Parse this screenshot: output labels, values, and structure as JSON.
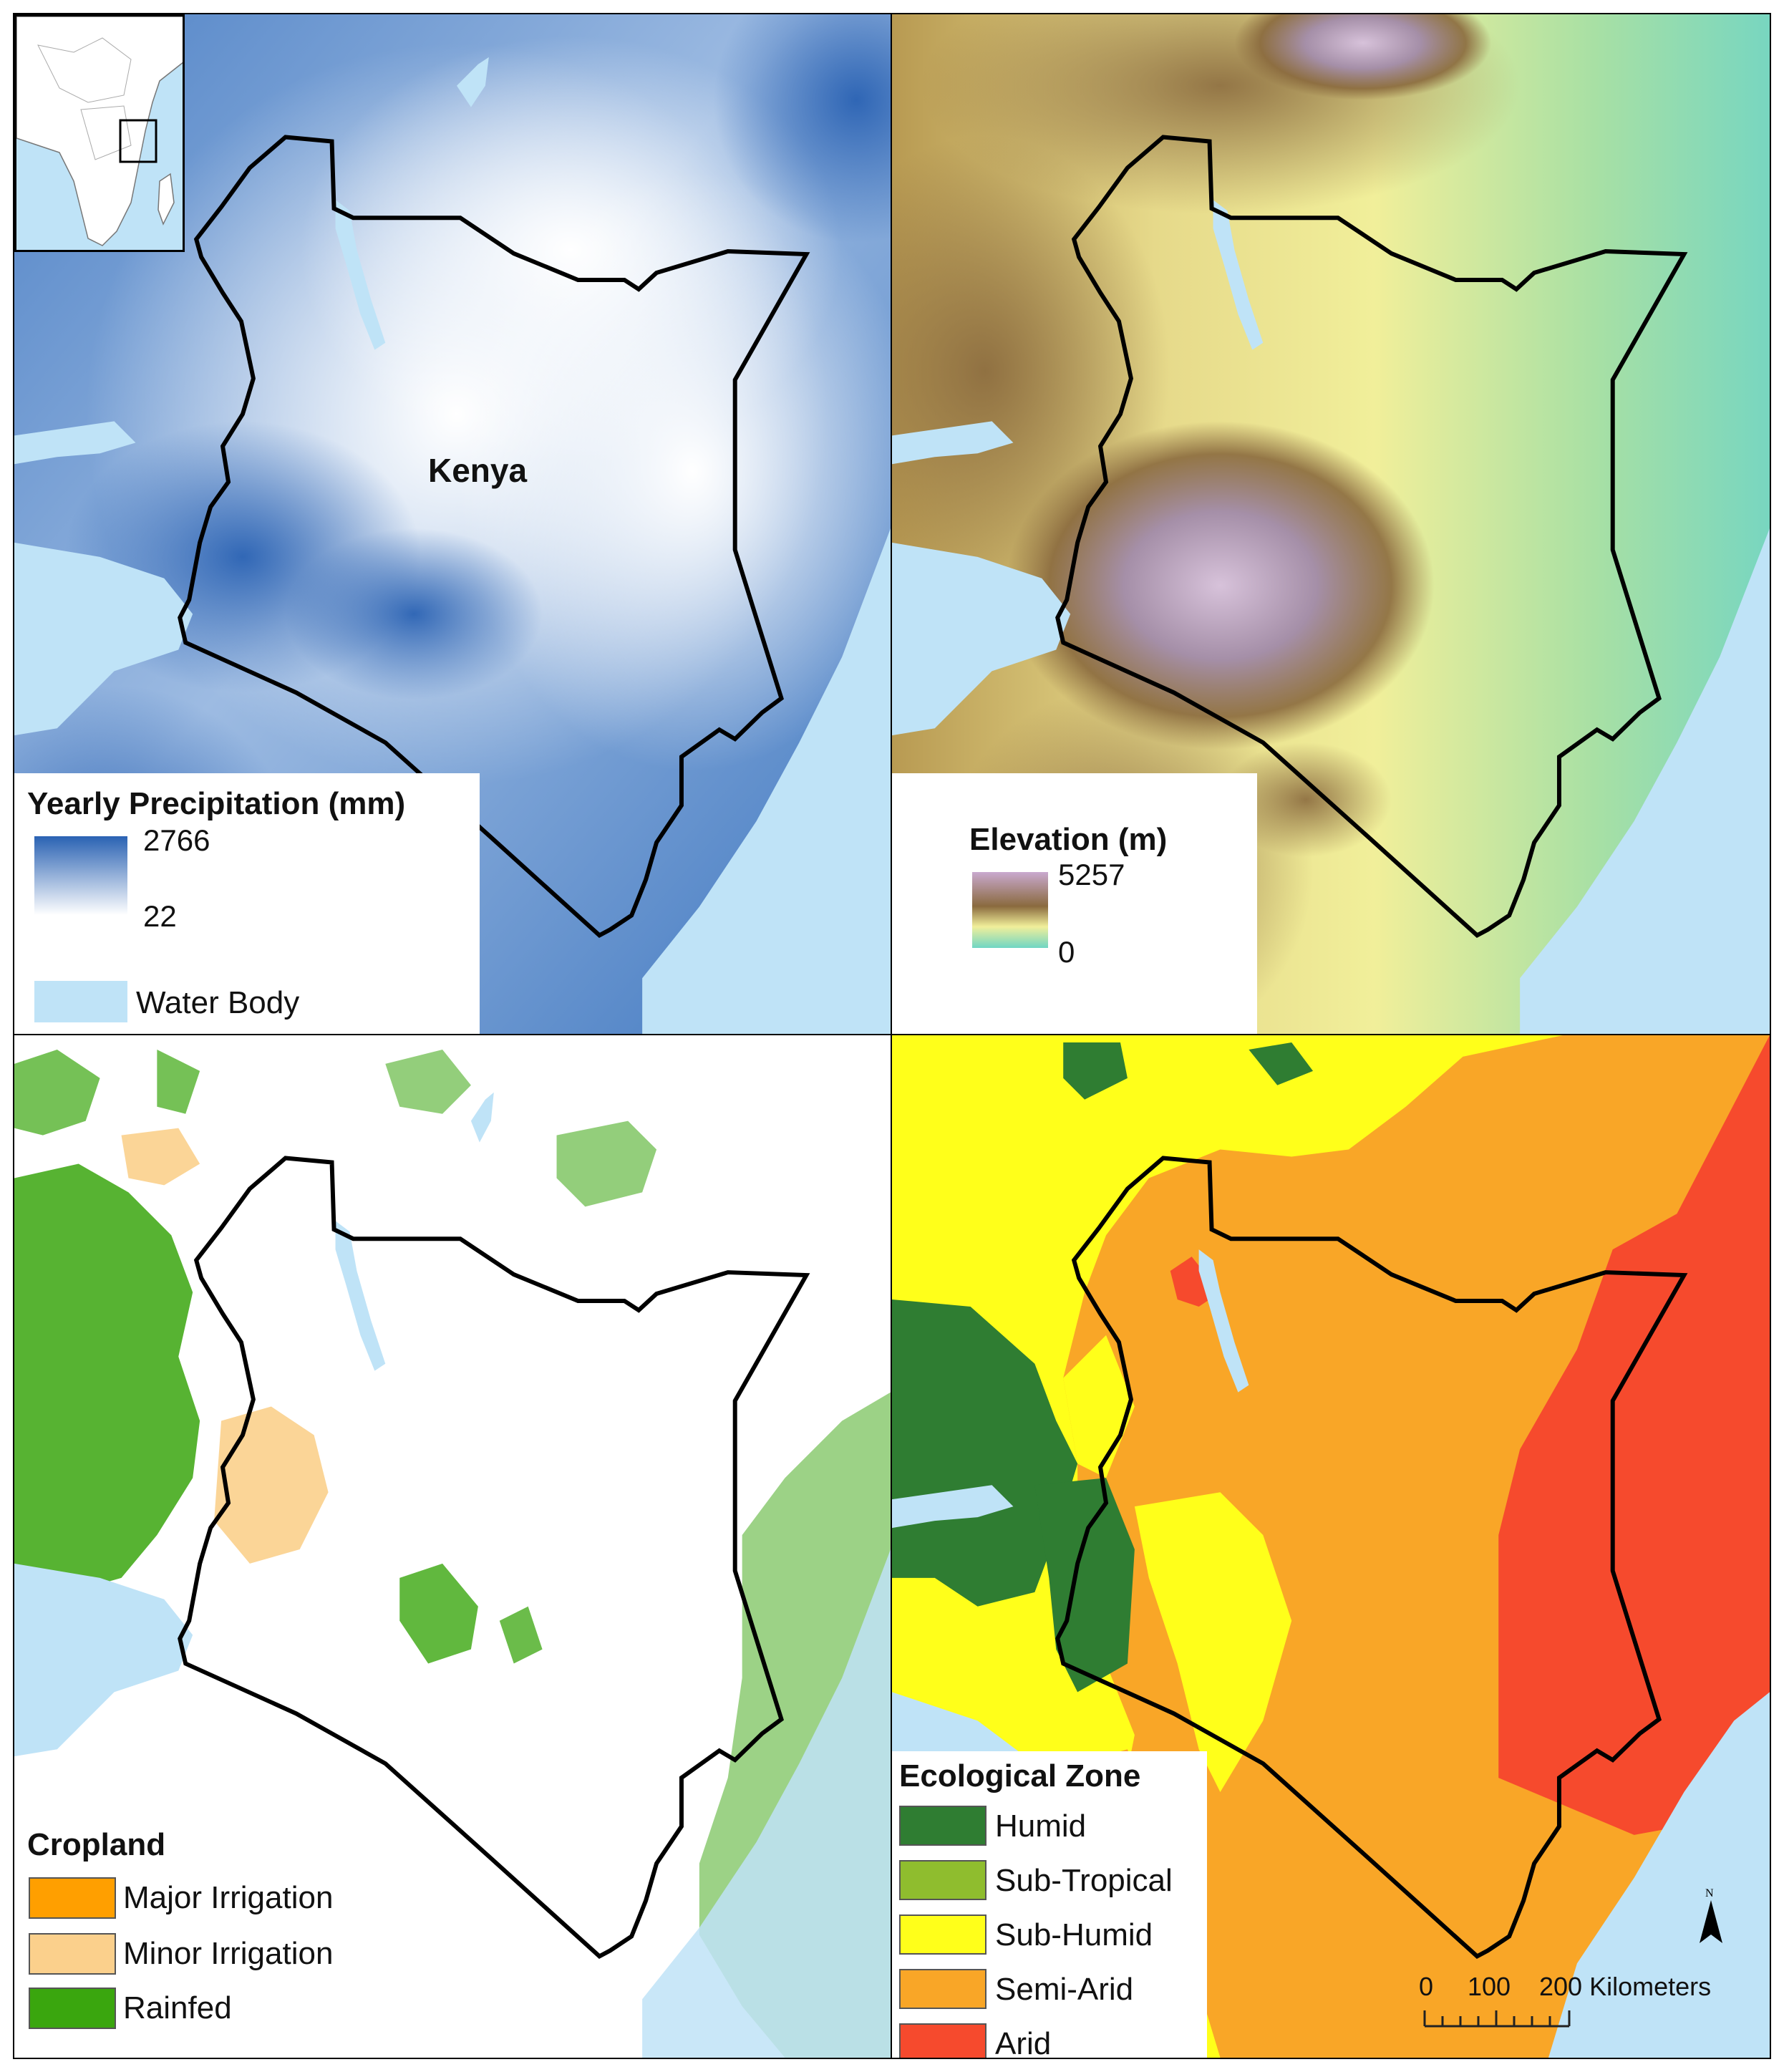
{
  "precipitation_panel": {
    "country_label": "Kenya",
    "legend_title": "Yearly Precipitation (mm)",
    "max_value": "2766",
    "min_value": "22",
    "color_high": "#2a62b3",
    "color_low": "#ffffff",
    "water_label": "Water Body",
    "water_color": "#bfe3f7"
  },
  "elevation_panel": {
    "legend_title": "Elevation (m)",
    "max_value": "5257",
    "min_value": "0",
    "color_high": "#c9a9cf",
    "color_mid": "#8a6a3e",
    "color_low": "#6fd6c4"
  },
  "cropland_panel": {
    "legend_title": "Cropland",
    "items": [
      {
        "label": "Major Irrigation",
        "color": "#ff9f00"
      },
      {
        "label": "Minor Irrigation",
        "color": "#fbd08c"
      },
      {
        "label": "Rainfed",
        "color": "#3aa60e"
      }
    ]
  },
  "ecological_panel": {
    "legend_title": "Ecological Zone",
    "items": [
      {
        "label": "Humid",
        "color": "#2f7d32"
      },
      {
        "label": "Sub-Tropical",
        "color": "#8fbd2e"
      },
      {
        "label": "Sub-Humid",
        "color": "#ffff1a"
      },
      {
        "label": "Semi-Arid",
        "color": "#f9a627"
      },
      {
        "label": "Arid",
        "color": "#f64a2d"
      }
    ],
    "north_label": "N",
    "scale_labels": [
      "0",
      "100",
      "200 Kilometers"
    ]
  }
}
